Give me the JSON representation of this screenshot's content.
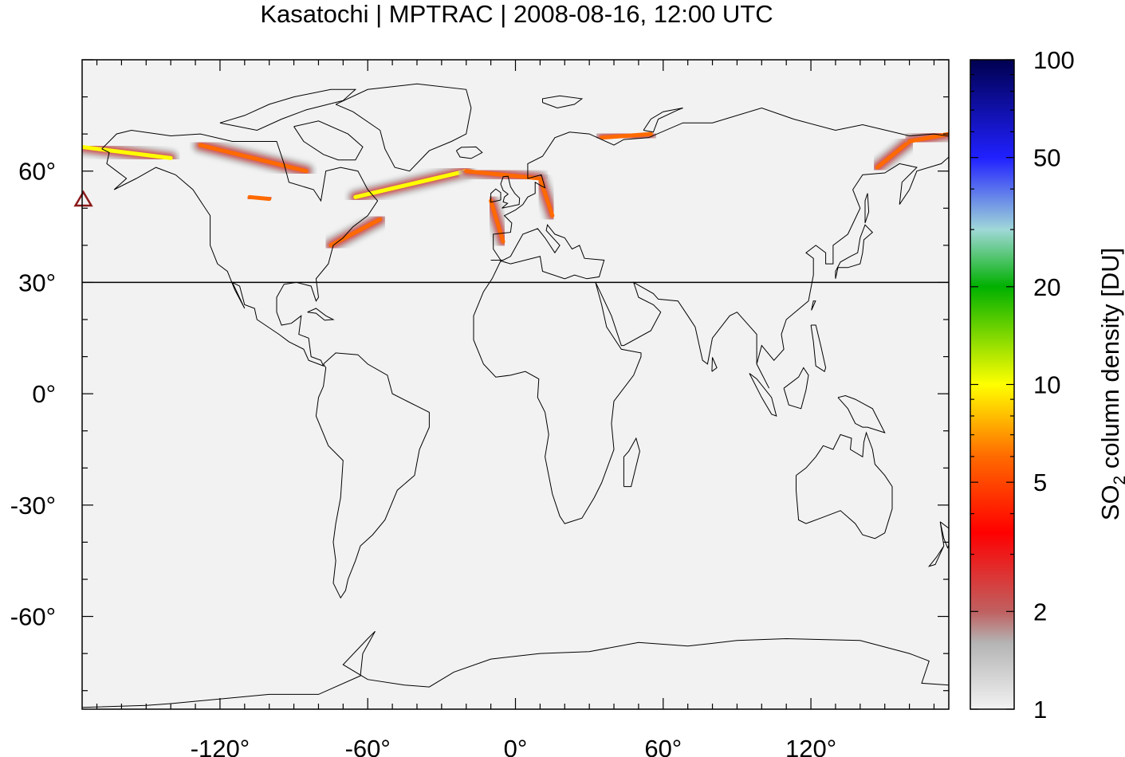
{
  "title": "Kasatochi | MPTRAC | 2008-08-16, 12:00 UTC",
  "map": {
    "projection": "equirectangular",
    "lon_range": [
      -176,
      176
    ],
    "lat_range": [
      -85,
      90
    ],
    "x_ticks": [
      {
        "value": -120,
        "label": "-120°"
      },
      {
        "value": -60,
        "label": "-60°"
      },
      {
        "value": 0,
        "label": "0°"
      },
      {
        "value": 60,
        "label": "60°"
      },
      {
        "value": 120,
        "label": "120°"
      }
    ],
    "y_ticks": [
      {
        "value": 60,
        "label": "60°"
      },
      {
        "value": 30,
        "label": "30°"
      },
      {
        "value": 0,
        "label": "0°"
      },
      {
        "value": -30,
        "label": "-30°"
      },
      {
        "value": -60,
        "label": "-60°"
      }
    ],
    "background_color": "#f2f2f2",
    "reference_line_lat": 30,
    "volcano_marker": {
      "name": "Kasatochi",
      "lon": -175.5,
      "lat": 52.2,
      "symbol": "triangle",
      "color": "#8b1a1a"
    }
  },
  "colorbar": {
    "label_prefix": "SO",
    "label_sub": "2",
    "label_suffix": " column density [DU]",
    "scale": "log",
    "range": [
      1,
      100
    ],
    "ticks": [
      {
        "value": 1,
        "label": "1"
      },
      {
        "value": 2,
        "label": "2"
      },
      {
        "value": 5,
        "label": "5"
      },
      {
        "value": 10,
        "label": "10"
      },
      {
        "value": 20,
        "label": "20"
      },
      {
        "value": 50,
        "label": "50"
      },
      {
        "value": 100,
        "label": "100"
      }
    ],
    "color_stops": [
      {
        "value": 1,
        "color": "#f2f2f2"
      },
      {
        "value": 1.6,
        "color": "#b4b4b4"
      },
      {
        "value": 2,
        "color": "#c06060"
      },
      {
        "value": 3.5,
        "color": "#ff0000"
      },
      {
        "value": 6,
        "color": "#ff6a00"
      },
      {
        "value": 10,
        "color": "#ffff00"
      },
      {
        "value": 20,
        "color": "#00b000"
      },
      {
        "value": 30,
        "color": "#a0d8d8"
      },
      {
        "value": 50,
        "color": "#2020ff"
      },
      {
        "value": 100,
        "color": "#000050"
      }
    ]
  },
  "plumes": [
    {
      "name": "kasatochi-plume-alaska",
      "lon": -176,
      "lat": 66.5,
      "lon2": -140,
      "lat2": 63.5,
      "peak_du": 8
    },
    {
      "name": "plume-canada-west",
      "lon": -128,
      "lat": 67,
      "lon2": -85,
      "lat2": 60,
      "peak_du": 5
    },
    {
      "name": "plume-canada-central",
      "lon": -108,
      "lat": 53,
      "lon2": -100,
      "lat2": 52.5,
      "peak_du": 5
    },
    {
      "name": "plume-labrador-atlantic",
      "lon": -65,
      "lat": 53,
      "lon2": -20,
      "lat2": 60,
      "peak_du": 8
    },
    {
      "name": "plume-atlantic-east",
      "lon": -20,
      "lat": 60,
      "lon2": 10,
      "lat2": 58,
      "peak_du": 5
    },
    {
      "name": "plume-north-sea",
      "lon": 10,
      "lat": 58,
      "lon2": 15,
      "lat2": 48,
      "peak_du": 4
    },
    {
      "name": "plume-bay-of-biscay",
      "lon": -10,
      "lat": 52,
      "lon2": -5,
      "lat2": 41,
      "peak_du": 6
    },
    {
      "name": "plume-newfoundland",
      "lon": -75,
      "lat": 40,
      "lon2": -55,
      "lat2": 47,
      "peak_du": 4
    },
    {
      "name": "plume-barents-sea",
      "lon": 35,
      "lat": 69,
      "lon2": 55,
      "lat2": 70,
      "peak_du": 4
    },
    {
      "name": "plume-kamchatka",
      "lon": 147,
      "lat": 61,
      "lon2": 160,
      "lat2": 68,
      "peak_du": 6
    },
    {
      "name": "plume-east-siberia",
      "lon": 160,
      "lat": 68,
      "lon2": 176,
      "lat2": 70,
      "peak_du": 5
    }
  ]
}
